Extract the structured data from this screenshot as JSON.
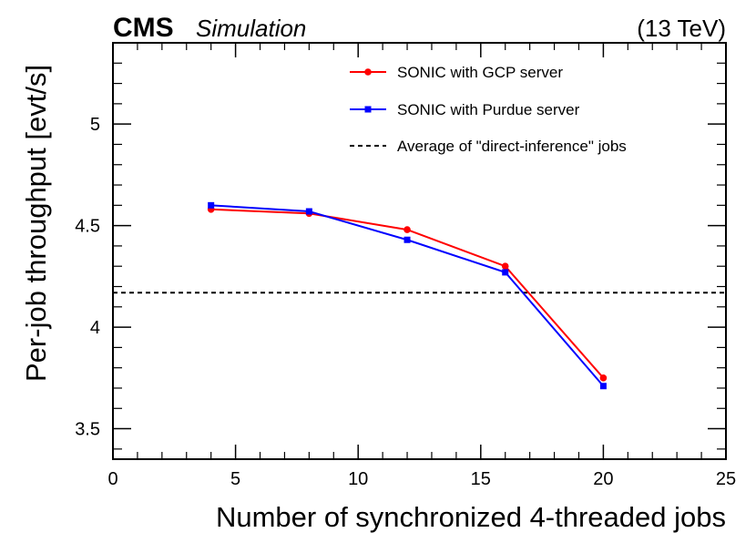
{
  "header": {
    "experiment": "CMS",
    "tag": "Simulation",
    "energy": "(13 TeV)"
  },
  "chart_data": {
    "type": "line",
    "title": "",
    "xlabel": "Number of synchronized 4-threaded jobs",
    "ylabel": "Per-job throughput [evt/s]",
    "xlim": [
      0,
      25
    ],
    "ylim": [
      3.35,
      5.4
    ],
    "x_ticks": [
      0,
      5,
      10,
      15,
      20,
      25
    ],
    "x_tick_labels": [
      "0",
      "5",
      "10",
      "15",
      "20",
      "25"
    ],
    "y_ticks": [
      3.5,
      4,
      4.5,
      5
    ],
    "y_tick_labels": [
      "3.5",
      "4",
      "4.5",
      "5"
    ],
    "legend_position": "top-right",
    "series": [
      {
        "name": "SONIC with GCP server",
        "color": "#ff0000",
        "marker": "circle",
        "x": [
          4,
          8,
          12,
          16,
          20
        ],
        "values": [
          4.58,
          4.56,
          4.48,
          4.3,
          3.75
        ]
      },
      {
        "name": "SONIC with Purdue server",
        "color": "#0000ff",
        "marker": "square",
        "x": [
          4,
          8,
          12,
          16,
          20
        ],
        "values": [
          4.6,
          4.57,
          4.43,
          4.27,
          3.71
        ]
      }
    ],
    "reference_line": {
      "name": "Average of \"direct-inference\" jobs",
      "value": 4.17,
      "style": "dashed",
      "color": "#000000"
    }
  }
}
